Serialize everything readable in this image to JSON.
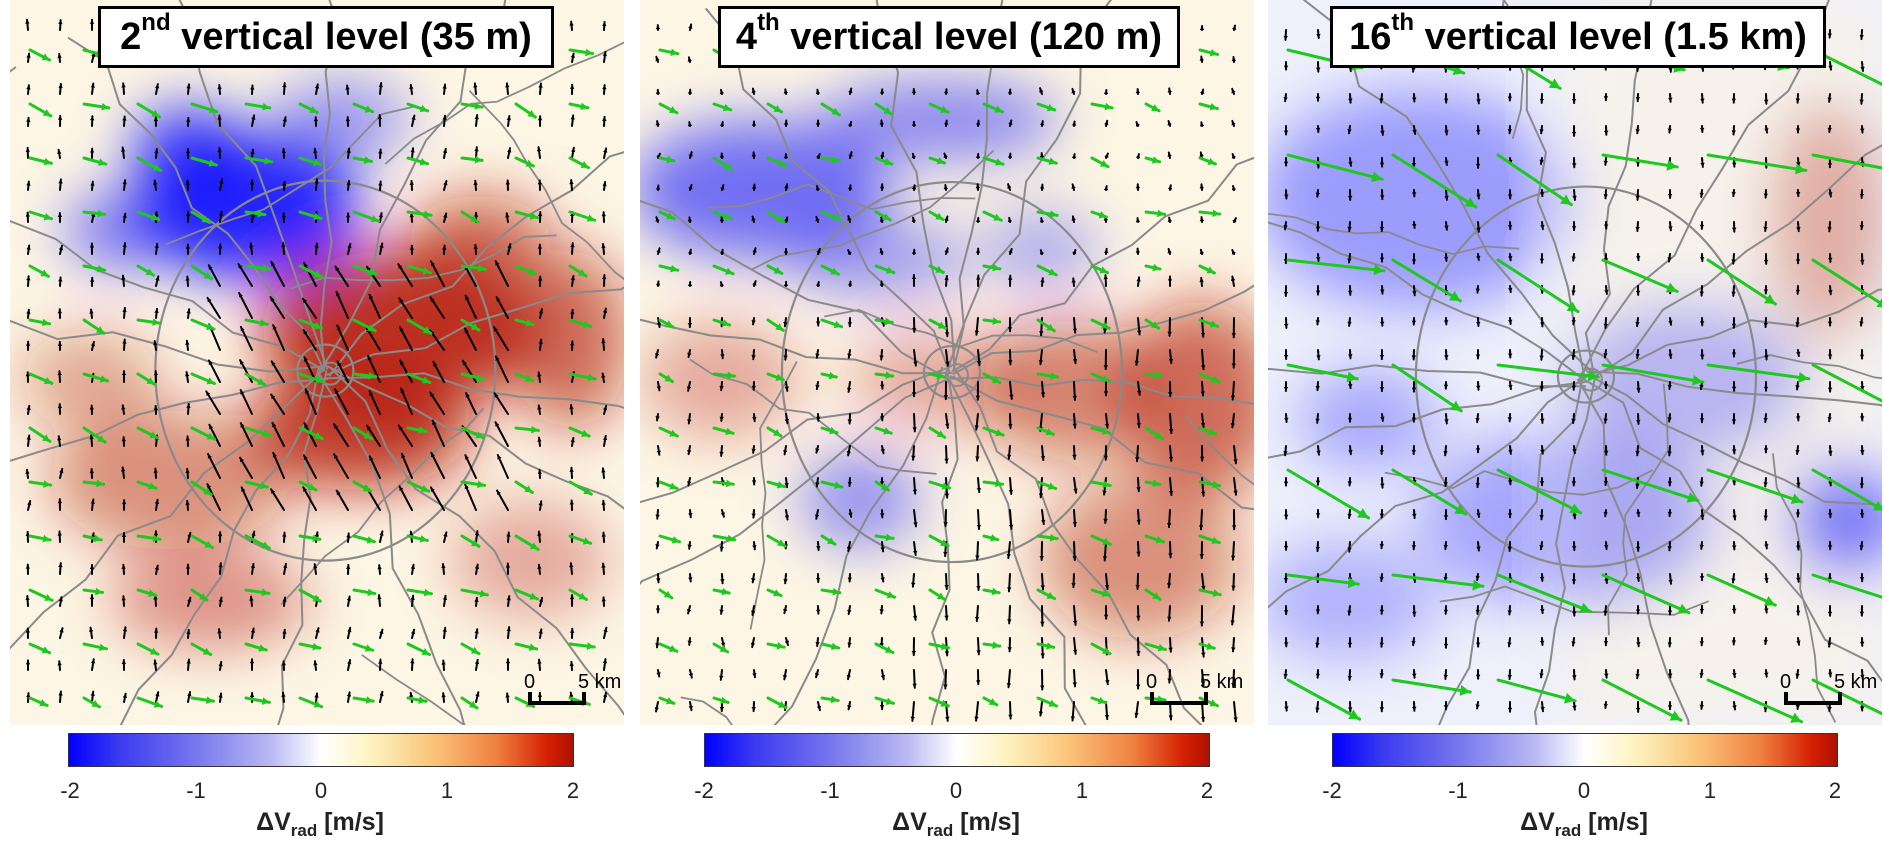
{
  "panels": [
    {
      "title_num": "2",
      "title_sup": "nd",
      "title_rest": " vertical level (35 m)",
      "scale": {
        "zero": "0",
        "label": "5 km"
      },
      "wind_strength": 1.0,
      "black_vectors": true
    },
    {
      "title_num": "4",
      "title_sup": "th",
      "title_rest": " vertical level (120 m)",
      "scale": {
        "zero": "0",
        "label": "5 km"
      },
      "wind_strength": 0.8,
      "black_vectors": true
    },
    {
      "title_num": "16",
      "title_sup": "th",
      "title_rest": " vertical level (1.5 km)",
      "scale": {
        "zero": "0",
        "label": "5 km"
      },
      "wind_strength": 1.6,
      "black_vectors": true
    }
  ],
  "colorbar": {
    "ticks": [
      "-2",
      "-1",
      "0",
      "1",
      "2"
    ],
    "label_main": "ΔV",
    "label_sub": "rad",
    "label_unit": " [m/s]"
  },
  "colors": {
    "green_vector": "#1ec81e",
    "black_vector": "#000000",
    "roads": "#8a8a8a",
    "negative": "#0000ff",
    "positive": "#b01000"
  },
  "chart_data": [
    {
      "type": "heatmap",
      "title": "2nd vertical level (35 m)",
      "colorbar_range": [
        -2,
        2
      ],
      "colorbar_label": "ΔV rad [m/s]"
    },
    {
      "type": "heatmap",
      "title": "4th vertical level (120 m)",
      "colorbar_range": [
        -2,
        2
      ],
      "colorbar_label": "ΔV rad [m/s]"
    },
    {
      "type": "heatmap",
      "title": "16th vertical level (1.5 km)",
      "colorbar_range": [
        -2,
        2
      ],
      "colorbar_label": "ΔV rad [m/s]"
    }
  ]
}
